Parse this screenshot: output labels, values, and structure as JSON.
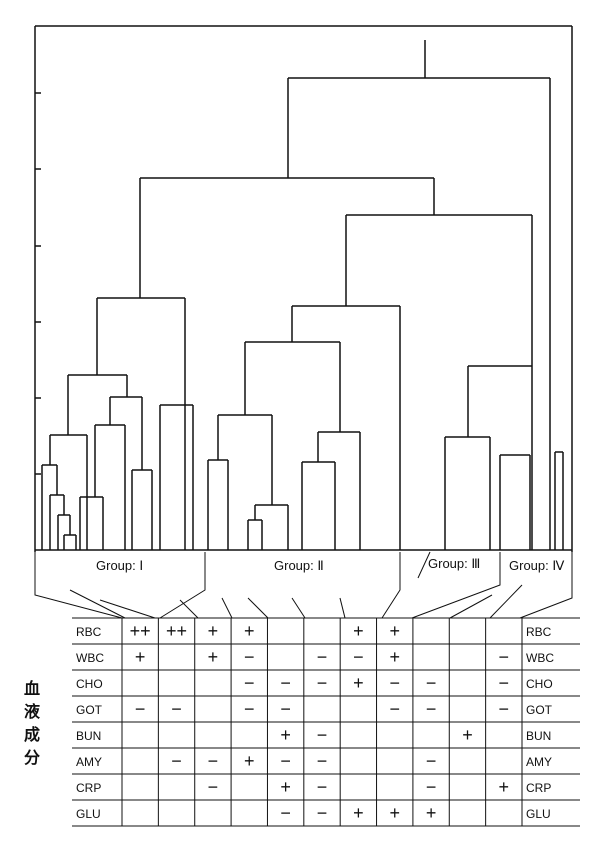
{
  "groups": [
    {
      "label": "Group: Ⅰ"
    },
    {
      "label": "Group: Ⅱ"
    },
    {
      "label": "Group: Ⅲ"
    },
    {
      "label": "Group: Ⅳ"
    }
  ],
  "side_label": "血液成分",
  "table": {
    "rows": [
      "RBC",
      "WBC",
      "CHO",
      "GOT",
      "BUN",
      "AMY",
      "CRP",
      "GLU"
    ],
    "cells": [
      [
        "++",
        "++",
        "+",
        "+",
        "",
        "",
        "+",
        "+",
        "",
        "",
        ""
      ],
      [
        "+",
        "",
        "+",
        "−",
        "",
        "−",
        "−",
        "+",
        "",
        "",
        "−"
      ],
      [
        "",
        "",
        "",
        "−",
        "−",
        "−",
        "+",
        "−",
        "−",
        "",
        "−"
      ],
      [
        "−",
        "−",
        "",
        "−",
        "−",
        "",
        "",
        "−",
        "−",
        "",
        "−"
      ],
      [
        "",
        "",
        "",
        "",
        "+",
        "−",
        "",
        "",
        "",
        "+",
        ""
      ],
      [
        "",
        "−",
        "−",
        "+",
        "−",
        "−",
        "",
        "",
        "−",
        "",
        ""
      ],
      [
        "",
        "",
        "−",
        "",
        "+",
        "−",
        "",
        "",
        "−",
        "",
        "+"
      ],
      [
        "",
        "",
        "",
        "",
        "−",
        "−",
        "+",
        "+",
        "+",
        "",
        ""
      ]
    ]
  }
}
